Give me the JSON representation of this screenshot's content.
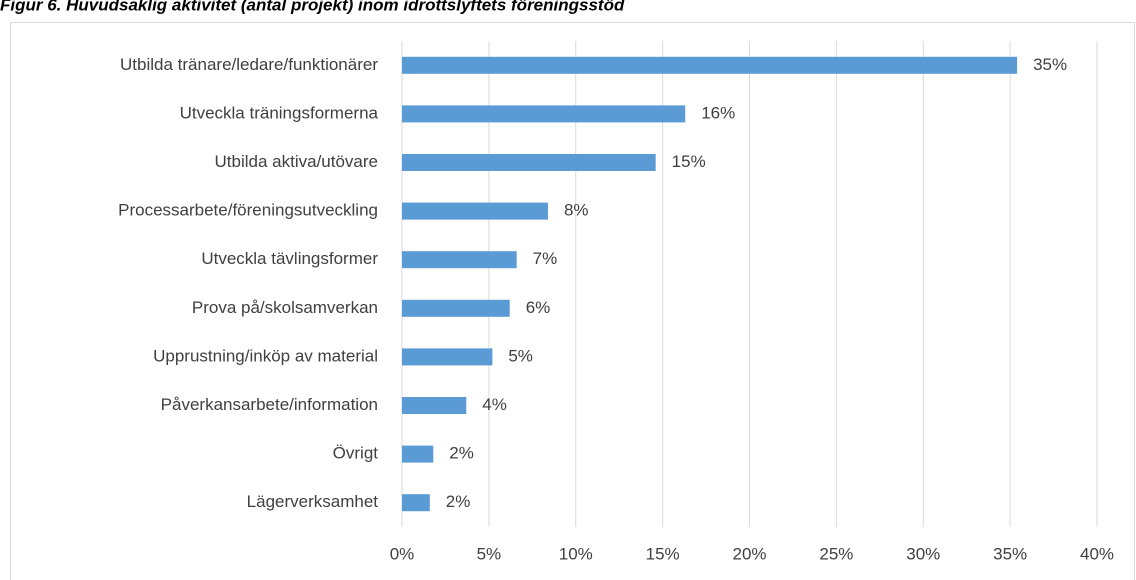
{
  "chart_data": {
    "type": "bar",
    "orientation": "horizontal",
    "title": "Figur 6. Huvudsaklig aktivitet (antal projekt) inom idrottslyftets föreningsstöd",
    "categories": [
      "Utbilda tränare/ledare/funktionärer",
      "Utveckla träningsformerna",
      "Utbilda aktiva/utövare",
      "Processarbete/föreningsutveckling",
      "Utveckla tävlingsformer",
      "Prova på/skolsamverkan",
      "Upprustning/inköp av material",
      "Påverkansarbete/information",
      "Övrigt",
      "Lägerverksamhet"
    ],
    "values": [
      35.4,
      16.3,
      14.6,
      8.4,
      6.6,
      6.2,
      5.2,
      3.7,
      1.8,
      1.6
    ],
    "value_labels": [
      "35%",
      "16%",
      "15%",
      "8%",
      "7%",
      "6%",
      "5%",
      "4%",
      "2%",
      "2%"
    ],
    "color": "#5b9bd5",
    "xlim": [
      0,
      40
    ],
    "xticks": [
      {
        "value": 0,
        "label": "0%"
      },
      {
        "value": 5,
        "label": "5%"
      },
      {
        "value": 10,
        "label": "10%"
      },
      {
        "value": 15,
        "label": "15%"
      },
      {
        "value": 20,
        "label": "20%"
      },
      {
        "value": 25,
        "label": "25%"
      },
      {
        "value": 30,
        "label": "30%"
      },
      {
        "value": 35,
        "label": "35%"
      },
      {
        "value": 40,
        "label": "40%"
      }
    ],
    "grid": true
  }
}
